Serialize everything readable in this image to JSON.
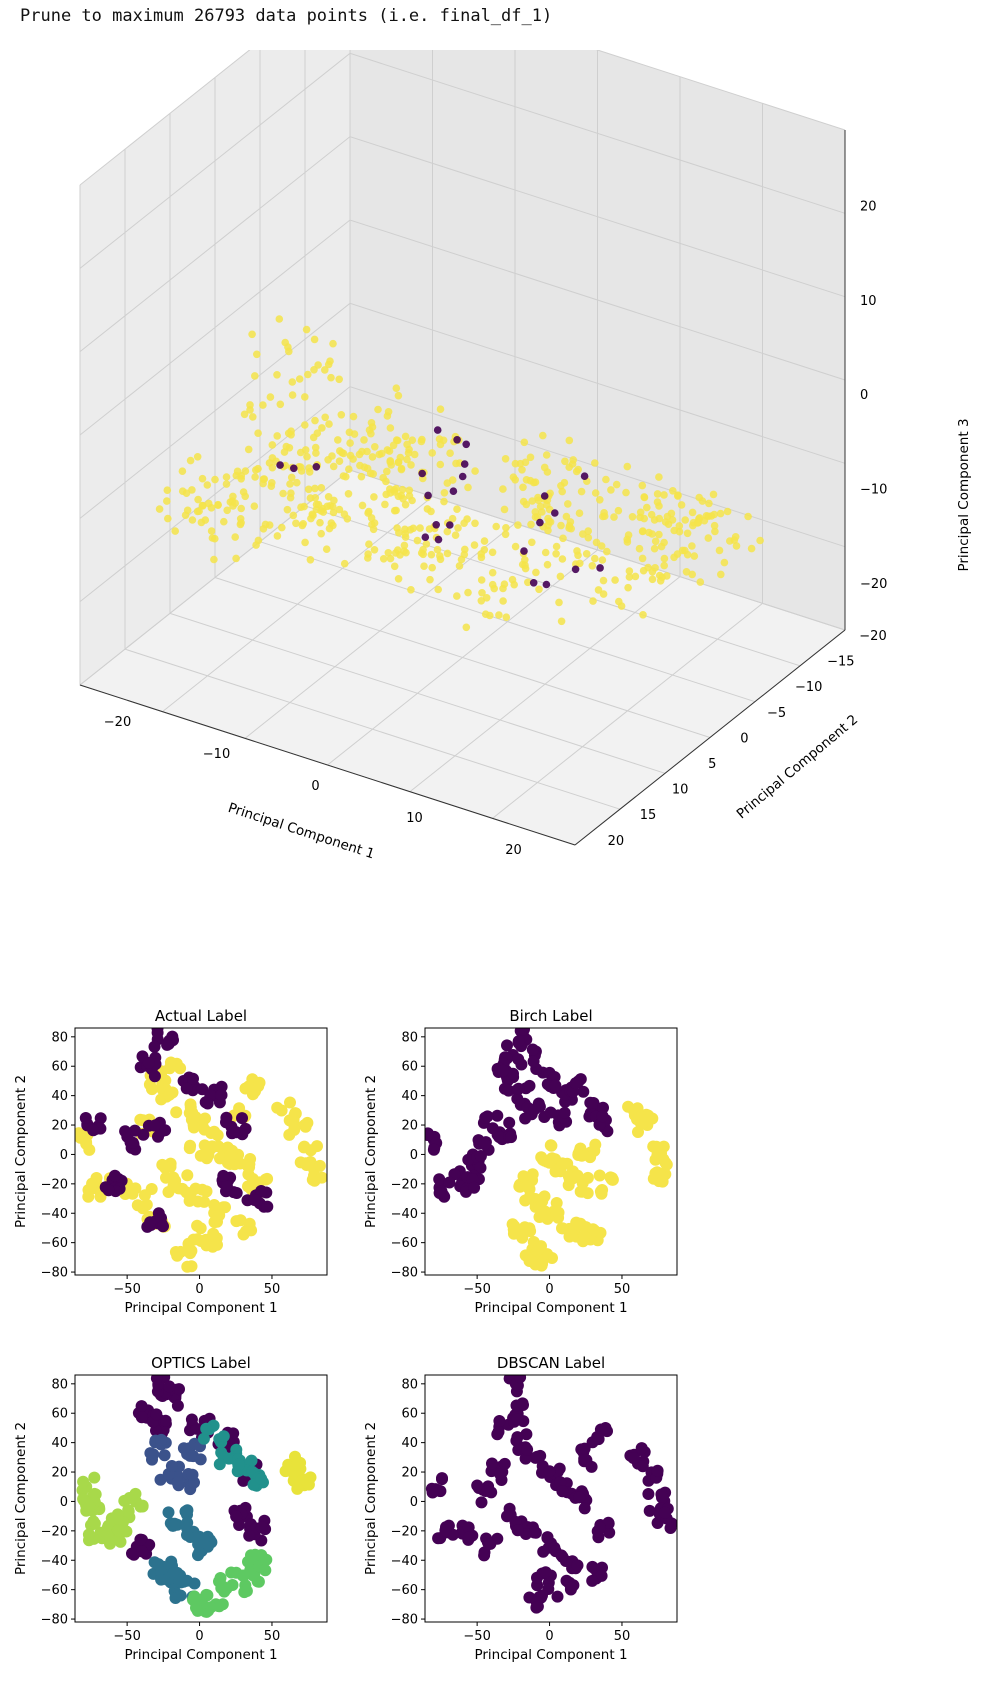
{
  "header": {
    "text": "Prune to maximum 26793 data points (i.e. final_df_1)"
  },
  "colors": {
    "viridis_dark": "#440154",
    "viridis_yellow": "#f5e44a",
    "optics_palette": [
      "#440154",
      "#3b528b",
      "#2c728e",
      "#21918c",
      "#5ec962",
      "#a8d94a",
      "#e8e33a"
    ]
  },
  "chart_data": [
    {
      "type": "scatter3d",
      "xlabel": "Principal Component 1",
      "ylabel": "Principal Component 2",
      "zlabel": "Principal Component 3",
      "x_ticks": [
        "−20",
        "−10",
        "0",
        "10",
        "20"
      ],
      "y_ticks": [
        "−20",
        "−15",
        "−10",
        "−5",
        "0",
        "5",
        "10",
        "15",
        "20"
      ],
      "z_ticks": [
        "−20",
        "−10",
        "0",
        "10",
        "20"
      ],
      "xlim": [
        -25,
        25
      ],
      "ylim": [
        -20,
        22
      ],
      "zlim": [
        -25,
        28
      ],
      "series": [
        {
          "color": "#f5e44a",
          "points": [
            [
              -20,
              -5,
              -3
            ],
            [
              -18,
              2,
              -6
            ],
            [
              -15,
              6,
              -8
            ],
            [
              -12,
              -2,
              -9
            ],
            [
              -10,
              10,
              -5
            ],
            [
              -8,
              -8,
              -11
            ],
            [
              -5,
              4,
              -10
            ],
            [
              -3,
              14,
              -4
            ],
            [
              0,
              -10,
              -12
            ],
            [
              2,
              8,
              -7
            ],
            [
              5,
              -4,
              -11
            ],
            [
              8,
              16,
              -3
            ],
            [
              10,
              0,
              -9
            ],
            [
              12,
              -12,
              -14
            ],
            [
              15,
              10,
              -6
            ],
            [
              18,
              -6,
              -10
            ],
            [
              20,
              4,
              -8
            ],
            [
              -18,
              12,
              -10
            ],
            [
              -14,
              -12,
              -14
            ],
            [
              -6,
              18,
              -2
            ],
            [
              6,
              20,
              -1
            ],
            [
              14,
              18,
              -4
            ],
            [
              -22,
              8,
              -12
            ],
            [
              -16,
              -14,
              -18
            ],
            [
              -2,
              -16,
              -16
            ],
            [
              4,
              -18,
              -18
            ],
            [
              10,
              -16,
              -17
            ],
            [
              16,
              -14,
              -15
            ],
            [
              -20,
              -10,
              -16
            ],
            [
              -12,
              16,
              -6
            ]
          ]
        },
        {
          "color": "#440154",
          "points": [
            [
              -14,
              6,
              -6
            ],
            [
              -6,
              -4,
              -9
            ],
            [
              2,
              12,
              -4
            ],
            [
              8,
              -6,
              -10
            ],
            [
              14,
              8,
              -5
            ],
            [
              -10,
              -12,
              -13
            ],
            [
              18,
              14,
              -3
            ],
            [
              -2,
              4,
              -8
            ]
          ]
        }
      ]
    },
    {
      "type": "scatter",
      "title": "Actual Label",
      "xlabel": "Principal Component 1",
      "ylabel": "Principal Component 2",
      "xlim": [
        -86,
        88
      ],
      "ylim": [
        -82,
        86
      ],
      "x_ticks": [
        -50,
        0,
        50
      ],
      "y_ticks": [
        -80,
        -60,
        -40,
        -20,
        0,
        20,
        40,
        60,
        80
      ],
      "series": [
        {
          "color": "#f5e44a",
          "points": [
            [
              -30,
              50
            ],
            [
              -20,
              40
            ],
            [
              -10,
              30
            ],
            [
              0,
              20
            ],
            [
              10,
              10
            ],
            [
              20,
              0
            ],
            [
              -25,
              -10
            ],
            [
              -15,
              -20
            ],
            [
              0,
              -30
            ],
            [
              15,
              -40
            ],
            [
              30,
              -50
            ],
            [
              -35,
              20
            ],
            [
              25,
              30
            ],
            [
              40,
              -20
            ],
            [
              -5,
              -55
            ],
            [
              10,
              -60
            ],
            [
              -20,
              60
            ],
            [
              35,
              45
            ],
            [
              -40,
              -30
            ],
            [
              -55,
              -20
            ],
            [
              -70,
              -22
            ],
            [
              -78,
              10
            ],
            [
              60,
              30
            ],
            [
              68,
              20
            ],
            [
              75,
              0
            ],
            [
              78,
              -12
            ],
            [
              -10,
              -70
            ],
            [
              0,
              0
            ],
            [
              30,
              -10
            ],
            [
              -30,
              -45
            ]
          ]
        },
        {
          "color": "#440154",
          "points": [
            [
              -25,
              80
            ],
            [
              -35,
              60
            ],
            [
              -5,
              50
            ],
            [
              10,
              40
            ],
            [
              -30,
              15
            ],
            [
              20,
              -20
            ],
            [
              -60,
              -20
            ],
            [
              -75,
              20
            ],
            [
              -30,
              -45
            ],
            [
              40,
              -30
            ],
            [
              -45,
              10
            ],
            [
              25,
              20
            ]
          ]
        }
      ]
    },
    {
      "type": "scatter",
      "title": "Birch Label",
      "xlabel": "Principal Component 1",
      "ylabel": "Principal Component 2",
      "xlim": [
        -86,
        88
      ],
      "ylim": [
        -82,
        86
      ],
      "x_ticks": [
        -50,
        0,
        50
      ],
      "y_ticks": [
        -80,
        -60,
        -40,
        -20,
        0,
        20,
        40,
        60,
        80
      ],
      "series": [
        {
          "color": "#440154",
          "points": [
            [
              -30,
              50
            ],
            [
              -20,
              40
            ],
            [
              -10,
              30
            ],
            [
              0,
              50
            ],
            [
              10,
              40
            ],
            [
              20,
              45
            ],
            [
              30,
              30
            ],
            [
              -25,
              70
            ],
            [
              -35,
              60
            ],
            [
              -40,
              20
            ],
            [
              -50,
              -5
            ],
            [
              -60,
              -15
            ],
            [
              -70,
              -22
            ],
            [
              -78,
              10
            ],
            [
              -55,
              -20
            ],
            [
              -45,
              5
            ],
            [
              35,
              20
            ],
            [
              -15,
              65
            ],
            [
              5,
              25
            ],
            [
              -30,
              15
            ],
            [
              -20,
              80
            ]
          ]
        },
        {
          "color": "#f5e44a",
          "points": [
            [
              0,
              0
            ],
            [
              10,
              -10
            ],
            [
              20,
              -20
            ],
            [
              -10,
              -30
            ],
            [
              0,
              -40
            ],
            [
              15,
              -50
            ],
            [
              30,
              -55
            ],
            [
              -20,
              -50
            ],
            [
              -15,
              -20
            ],
            [
              25,
              5
            ],
            [
              40,
              -20
            ],
            [
              -5,
              -65
            ],
            [
              -10,
              -70
            ],
            [
              60,
              30
            ],
            [
              68,
              20
            ],
            [
              75,
              0
            ],
            [
              78,
              -12
            ]
          ]
        }
      ]
    },
    {
      "type": "scatter",
      "title": "OPTICS Label",
      "xlabel": "Principal Component 1",
      "ylabel": "Principal Component 2",
      "xlim": [
        -86,
        88
      ],
      "ylim": [
        -82,
        86
      ],
      "x_ticks": [
        -50,
        0,
        50
      ],
      "y_ticks": [
        -80,
        -60,
        -40,
        -20,
        0,
        20,
        40,
        60,
        80
      ],
      "series": [
        {
          "color": "#440154",
          "points": [
            [
              -30,
              50
            ],
            [
              -20,
              70
            ],
            [
              -35,
              60
            ],
            [
              0,
              50
            ],
            [
              20,
              40
            ],
            [
              35,
              20
            ],
            [
              -40,
              -30
            ],
            [
              30,
              -10
            ],
            [
              40,
              -20
            ],
            [
              -25,
              80
            ]
          ]
        },
        {
          "color": "#3b528b",
          "points": [
            [
              -20,
              20
            ],
            [
              -10,
              15
            ],
            [
              -5,
              35
            ],
            [
              -30,
              35
            ]
          ]
        },
        {
          "color": "#2c728e",
          "points": [
            [
              -15,
              -10
            ],
            [
              -5,
              -20
            ],
            [
              5,
              -30
            ],
            [
              -25,
              -45
            ],
            [
              -20,
              -55
            ],
            [
              -10,
              -60
            ]
          ]
        },
        {
          "color": "#21918c",
          "points": [
            [
              20,
              30
            ],
            [
              30,
              25
            ],
            [
              40,
              15
            ],
            [
              10,
              45
            ]
          ]
        },
        {
          "color": "#5ec962",
          "points": [
            [
              20,
              -55
            ],
            [
              35,
              -55
            ],
            [
              40,
              -40
            ],
            [
              10,
              -70
            ],
            [
              0,
              -70
            ]
          ]
        },
        {
          "color": "#a8d94a",
          "points": [
            [
              -70,
              -20
            ],
            [
              -60,
              -22
            ],
            [
              -55,
              -15
            ],
            [
              -78,
              10
            ],
            [
              -75,
              0
            ],
            [
              -45,
              0
            ]
          ]
        },
        {
          "color": "#e8e33a",
          "points": [
            [
              65,
              25
            ],
            [
              70,
              15
            ]
          ]
        }
      ]
    },
    {
      "type": "scatter",
      "title": "DBSCAN Label",
      "xlabel": "Principal Component 1",
      "ylabel": "Principal Component 2",
      "xlim": [
        -86,
        88
      ],
      "ylim": [
        -82,
        86
      ],
      "x_ticks": [
        -50,
        0,
        50
      ],
      "y_ticks": [
        -80,
        -60,
        -40,
        -20,
        0,
        20,
        40,
        60,
        80
      ],
      "series": [
        {
          "color": "#440154",
          "points": [
            [
              -30,
              50
            ],
            [
              -20,
              40
            ],
            [
              -10,
              30
            ],
            [
              0,
              20
            ],
            [
              10,
              10
            ],
            [
              20,
              0
            ],
            [
              -25,
              -10
            ],
            [
              -15,
              -20
            ],
            [
              0,
              -30
            ],
            [
              15,
              -40
            ],
            [
              30,
              -50
            ],
            [
              -35,
              20
            ],
            [
              25,
              30
            ],
            [
              40,
              -20
            ],
            [
              -5,
              -55
            ],
            [
              10,
              -60
            ],
            [
              -20,
              60
            ],
            [
              35,
              45
            ],
            [
              -40,
              -30
            ],
            [
              -55,
              -20
            ],
            [
              -70,
              -22
            ],
            [
              -78,
              10
            ],
            [
              60,
              30
            ],
            [
              68,
              20
            ],
            [
              75,
              0
            ],
            [
              78,
              -12
            ],
            [
              -10,
              -70
            ],
            [
              -25,
              80
            ],
            [
              -45,
              5
            ]
          ]
        }
      ]
    }
  ]
}
